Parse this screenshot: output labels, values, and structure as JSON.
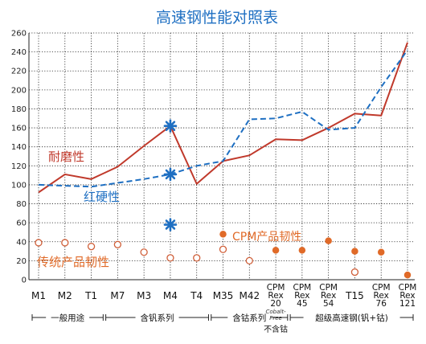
{
  "chart_data": {
    "type": "line",
    "title": "高速钢性能对照表",
    "ylim": [
      0,
      260
    ],
    "yticks": [
      0,
      20,
      40,
      60,
      80,
      100,
      120,
      140,
      160,
      180,
      200,
      220,
      240,
      260
    ],
    "grid": true,
    "categories": [
      {
        "lines": [
          "M1"
        ]
      },
      {
        "lines": [
          "M2"
        ]
      },
      {
        "lines": [
          "T1"
        ]
      },
      {
        "lines": [
          "M7"
        ]
      },
      {
        "lines": [
          "M3"
        ]
      },
      {
        "lines": [
          "M4"
        ]
      },
      {
        "lines": [
          "T4"
        ]
      },
      {
        "lines": [
          "M35"
        ]
      },
      {
        "lines": [
          "M42"
        ]
      },
      {
        "lines": [
          "CPM",
          "Rex",
          "20"
        ]
      },
      {
        "lines": [
          "CPM",
          "Rex",
          "45"
        ]
      },
      {
        "lines": [
          "CPM",
          "Rex",
          "54"
        ]
      },
      {
        "lines": [
          "T15"
        ]
      },
      {
        "lines": [
          "CPM",
          "Rex",
          "76"
        ]
      },
      {
        "lines": [
          "CPM",
          "Rex",
          "121"
        ]
      }
    ],
    "series": [
      {
        "name": "耐磨性",
        "style": "solid",
        "color": "#c0392b",
        "values": [
          92,
          111,
          106,
          119,
          141,
          162,
          101,
          125,
          131,
          148,
          147,
          160,
          175,
          173,
          250
        ]
      },
      {
        "name": "红硬性",
        "style": "dashed",
        "color": "#1e6fc2",
        "values": [
          100,
          99,
          98,
          102,
          106,
          111,
          120,
          125,
          169,
          170,
          177,
          158,
          160,
          203,
          242
        ]
      },
      {
        "name": "传统产品韧性",
        "style": "open-circle",
        "color": "#d0603a",
        "values": [
          39,
          39,
          35,
          37,
          29,
          23,
          23,
          32,
          20,
          null,
          null,
          null,
          8,
          null,
          null
        ]
      },
      {
        "name": "CPM产品韧性",
        "style": "filled-circle",
        "color": "#e06a28",
        "values": [
          null,
          null,
          null,
          null,
          null,
          null,
          null,
          48,
          null,
          31,
          31,
          41,
          30,
          29,
          5
        ]
      }
    ],
    "star_markers": {
      "category_index": 5,
      "values": [
        162,
        111,
        58
      ],
      "color": "#1e6fc2"
    },
    "series_labels": [
      "耐磨性",
      "红硬性",
      "CPM产品韧性",
      "传统产品韧性"
    ],
    "annotations": [
      "Cobalt-",
      "Free"
    ],
    "groups": [
      {
        "label": "一般用途",
        "note": null
      },
      {
        "label": "含钒系列",
        "note": null
      },
      {
        "label": "含钴系列",
        "note": "不含钴"
      },
      {
        "label": "超级高速钢(钒+钴)",
        "note": null
      }
    ]
  }
}
